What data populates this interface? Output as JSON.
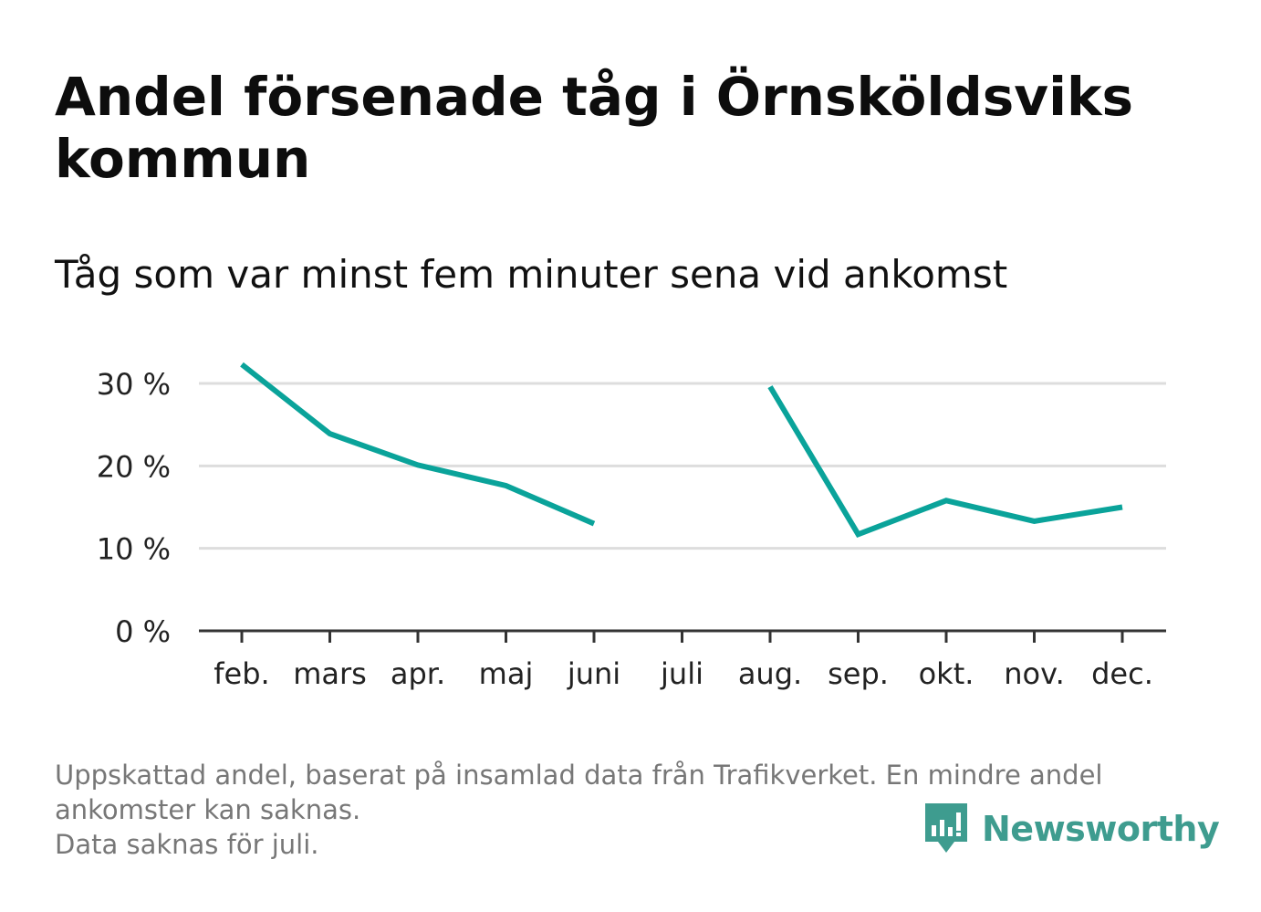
{
  "title": "Andel försenade tåg i Örnsköldsviks kommun",
  "subtitle": "Tåg som var minst fem minuter sena vid ankomst",
  "footnote": {
    "lines": [
      "Uppskattad andel, baserat på insamlad data från Trafikverket. En mindre andel",
      "ankomster kan saknas.",
      "Data saknas för juli."
    ]
  },
  "brand": {
    "name": "Newsworthy",
    "icon": "bar-chart-speech-bubble-icon",
    "color": "#3e9c8f"
  },
  "colors": {
    "line": "#0aa39a",
    "grid": "#dddddd",
    "axis": "#333333"
  },
  "chart_data": {
    "type": "line",
    "categories": [
      "feb.",
      "mars",
      "apr.",
      "maj",
      "juni",
      "juli",
      "aug.",
      "sep.",
      "okt.",
      "nov.",
      "dec."
    ],
    "series": [
      {
        "values": [
          32.3,
          23.9,
          20.1,
          17.6,
          13.0,
          null,
          29.6,
          11.7,
          15.8,
          13.3,
          15.0
        ]
      }
    ],
    "ylim": [
      0,
      33
    ],
    "yticks": [
      0,
      10,
      20,
      30
    ],
    "ytick_labels": [
      "0 %",
      "10 %",
      "20 %",
      "30 %"
    ],
    "grid": true,
    "xlabel": "",
    "ylabel": ""
  }
}
